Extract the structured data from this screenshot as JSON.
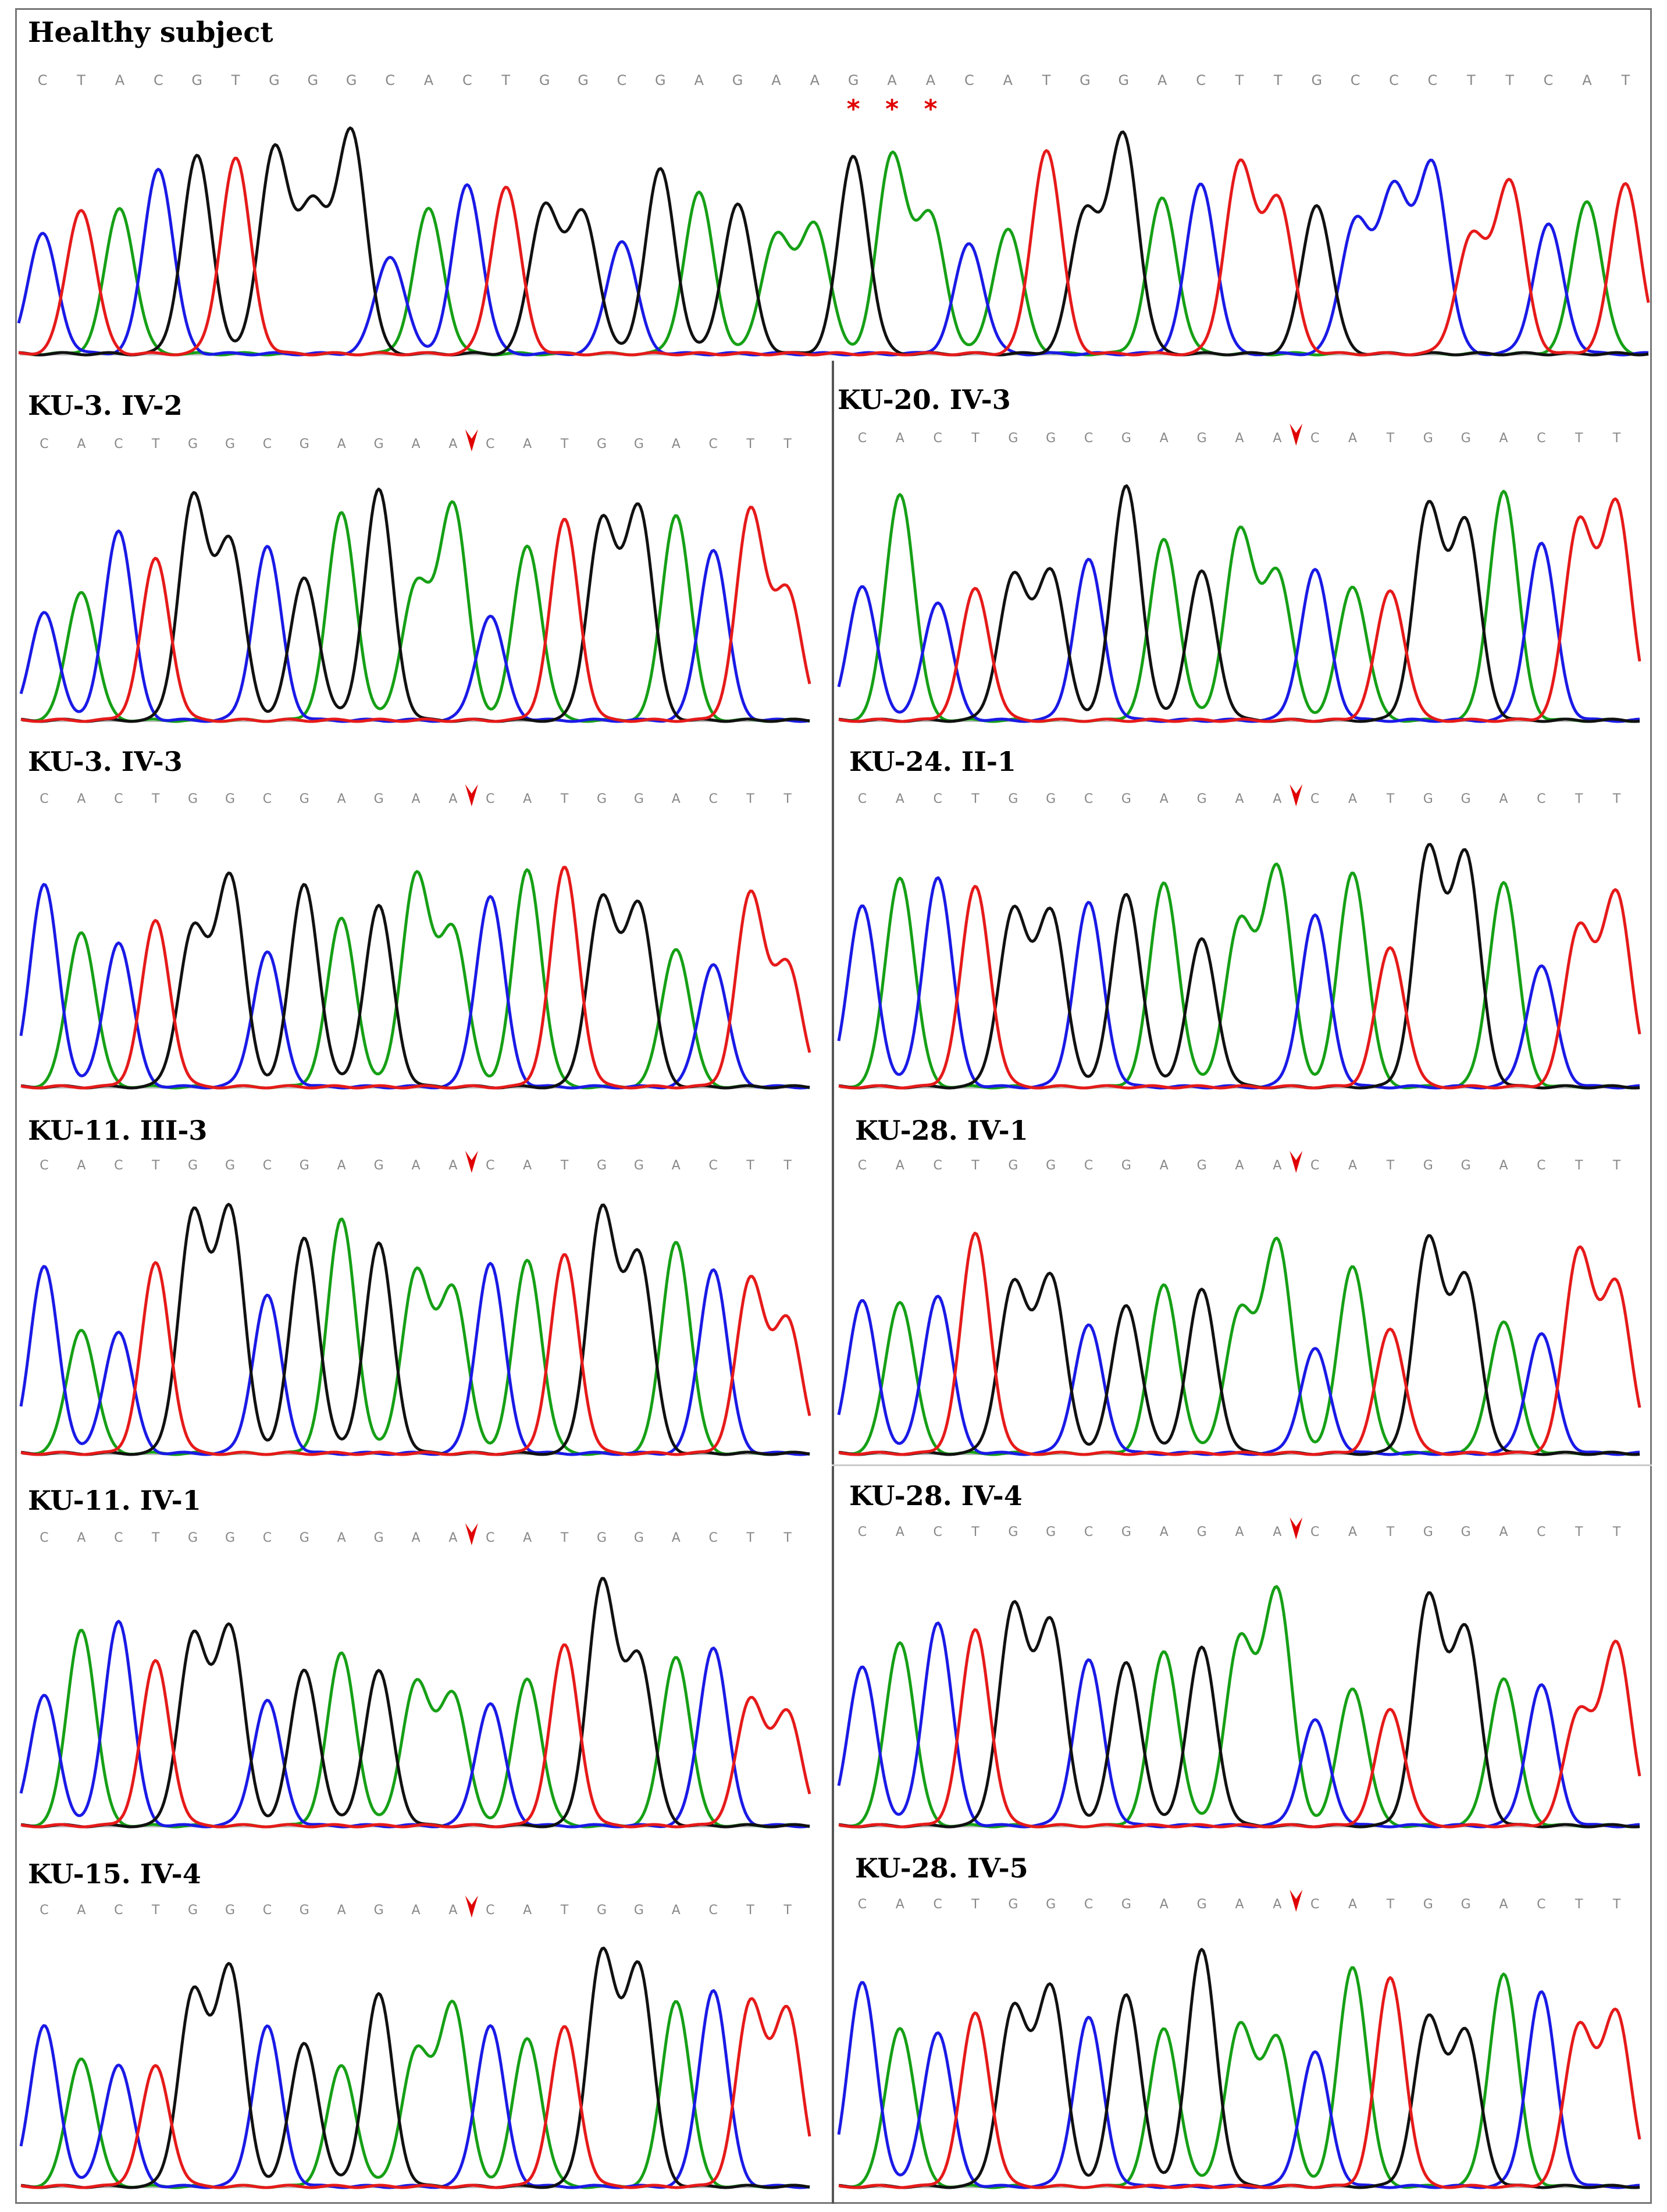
{
  "figure": {
    "healthy": {
      "title": "Healthy subject",
      "sequence": "CTACGTGGGCACTGGCGAGAAGAACATGGACTTGCCCTTCAT",
      "marker_label": "*",
      "starred_positions": [
        21,
        22,
        23
      ]
    },
    "patients": [
      {
        "title": "KU-3. IV-2",
        "sequence": "CACTGGCGAGAACATGGACTT"
      },
      {
        "title": "KU-20. IV-3",
        "sequence": "CACTGGCGAGAACATGGACTT"
      },
      {
        "title": "KU-3. IV-3",
        "sequence": "CACTGGCGAGAACATGGACTT"
      },
      {
        "title": "KU-24. II-1",
        "sequence": "CACTGGCGAGAACATGGACTT"
      },
      {
        "title": "KU-11. III-3",
        "sequence": "CACTGGCGAGAACATGGACTT"
      },
      {
        "title": "KU-28. IV-1",
        "sequence": "CACTGGCGAGAACATGGACTT"
      },
      {
        "title": "KU-11. IV-1",
        "sequence": "CACTGGCGAGAACATGGACTT"
      },
      {
        "title": "KU-28. IV-4",
        "sequence": "CACTGGCGAGAACATGGACTT"
      },
      {
        "title": "KU-15. IV-4",
        "sequence": "CACTGGCGAGAACATGGACTT"
      },
      {
        "title": "KU-28. IV-5",
        "sequence": "CACTGGCGAGAACATGGACTT"
      }
    ],
    "deletion_marker_after_index": 11,
    "base_colors": {
      "A": "#16a016",
      "C": "#1a1ae6",
      "G": "#111111",
      "T": "#e61a1a"
    },
    "marker_color": "#e00000"
  }
}
